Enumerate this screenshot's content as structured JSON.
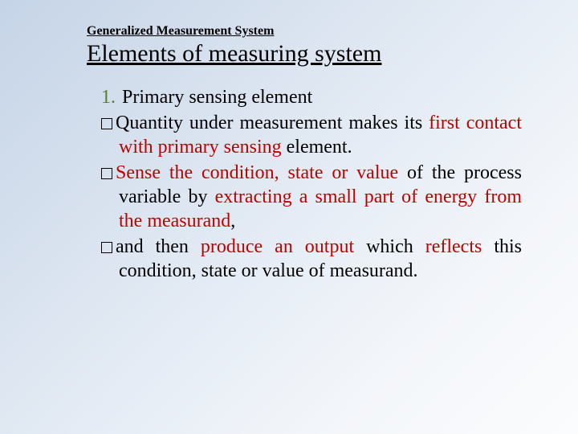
{
  "supertitle": "Generalized Measurement System",
  "title": "Elements of measuring system",
  "item_number": "1.",
  "item_heading": "Primary sensing element",
  "bullets": [
    {
      "segments": [
        {
          "text": "Quantity under measurement makes its ",
          "cls": ""
        },
        {
          "text": "first contact with primary sensing ",
          "cls": "hl"
        },
        {
          "text": "element.",
          "cls": ""
        }
      ]
    },
    {
      "segments": [
        {
          "text": "Sense the condition, state or value ",
          "cls": "hl"
        },
        {
          "text": "of the process variable by ",
          "cls": ""
        },
        {
          "text": "extracting a small part of energy from the measurand",
          "cls": "hl"
        },
        {
          "text": ",",
          "cls": ""
        }
      ]
    },
    {
      "segments": [
        {
          "text": "and then ",
          "cls": ""
        },
        {
          "text": "produce an output ",
          "cls": "hl"
        },
        {
          "text": "which ",
          "cls": ""
        },
        {
          "text": "reflects ",
          "cls": "hl"
        },
        {
          "text": "this condition, state or value of measurand.",
          "cls": ""
        }
      ]
    }
  ],
  "colors": {
    "highlight": "#c00000",
    "number": "#548235",
    "text": "#000000"
  }
}
